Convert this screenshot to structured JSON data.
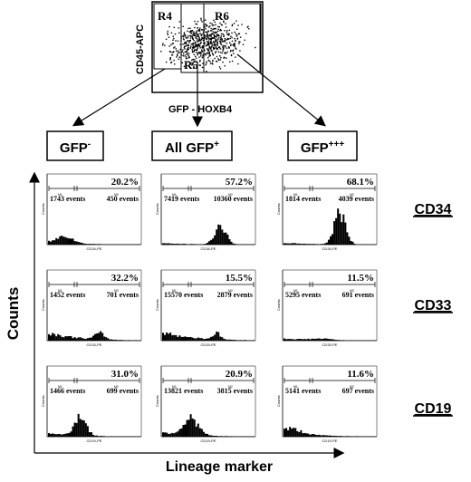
{
  "scatter": {
    "y_axis_label": "CD45-APC",
    "x_axis_label": "GFP - HOXB4",
    "regions": [
      "R4",
      "R5",
      "R6"
    ]
  },
  "groups": [
    {
      "label": "GFP",
      "superscript": "-"
    },
    {
      "label": "All GFP",
      "superscript": "+"
    },
    {
      "label": "GFP",
      "superscript": "+++"
    }
  ],
  "markers": [
    "CD34",
    "CD33",
    "CD19"
  ],
  "axes": {
    "y_label": "Counts",
    "x_label": "Lineage marker"
  },
  "histograms": [
    [
      {
        "percent": "20.2%",
        "events_left": "1743 events",
        "events_right": "450 events",
        "xlabel": "CD34-PE"
      },
      {
        "percent": "57.2%",
        "events_left": "7419 events",
        "events_right": "10360 events",
        "xlabel": "CD34-PE"
      },
      {
        "percent": "68.1%",
        "events_left": "1814 events",
        "events_right": "4039 events",
        "xlabel": "CD34-PE"
      }
    ],
    [
      {
        "percent": "32.2%",
        "events_left": "1452 events",
        "events_right": "701 events",
        "xlabel": "CD33-PE"
      },
      {
        "percent": "15.5%",
        "events_left": "15570 events",
        "events_right": "2879 events",
        "xlabel": "CD33-PE"
      },
      {
        "percent": "11.5%",
        "events_left": "5295 events",
        "events_right": "691 events",
        "xlabel": "CD33-PE"
      }
    ],
    [
      {
        "percent": "31.0%",
        "events_left": "1466 events",
        "events_right": "699 events",
        "xlabel": "CD19-PE"
      },
      {
        "percent": "20.9%",
        "events_left": "13821 events",
        "events_right": "3815 events",
        "xlabel": "CD19-PE"
      },
      {
        "percent": "11.6%",
        "events_left": "5141 events",
        "events_right": "697 events",
        "xlabel": "CD19-PE"
      }
    ]
  ],
  "histogram_axis": {
    "counts_label": "Counts",
    "gate_left": "M1",
    "gate_right": "M2"
  },
  "histogram_shape": [
    [
      {
        "peak_center": 0.18,
        "peak_width": 0.16,
        "peak_height": 0.22,
        "tail": 0.08
      },
      {
        "peak_center": 0.62,
        "peak_width": 0.12,
        "peak_height": 0.55,
        "tail": 0.04
      },
      {
        "peak_center": 0.6,
        "peak_width": 0.12,
        "peak_height": 0.92,
        "tail": 0.05
      }
    ],
    [
      {
        "peak_center": 0.55,
        "peak_width": 0.1,
        "peak_height": 0.18,
        "tail": 0.22
      },
      {
        "peak_center": 0.58,
        "peak_width": 0.08,
        "peak_height": 0.18,
        "tail": 0.24
      },
      {
        "peak_center": 0.4,
        "peak_width": 0.25,
        "peak_height": 0.04,
        "tail": 0.06
      }
    ],
    [
      {
        "peak_center": 0.34,
        "peak_width": 0.12,
        "peak_height": 0.58,
        "tail": 0.1
      },
      {
        "peak_center": 0.3,
        "peak_width": 0.16,
        "peak_height": 0.48,
        "tail": 0.12
      },
      {
        "peak_center": 0.08,
        "peak_width": 0.2,
        "peak_height": 0.12,
        "tail": 0.14
      }
    ]
  ]
}
